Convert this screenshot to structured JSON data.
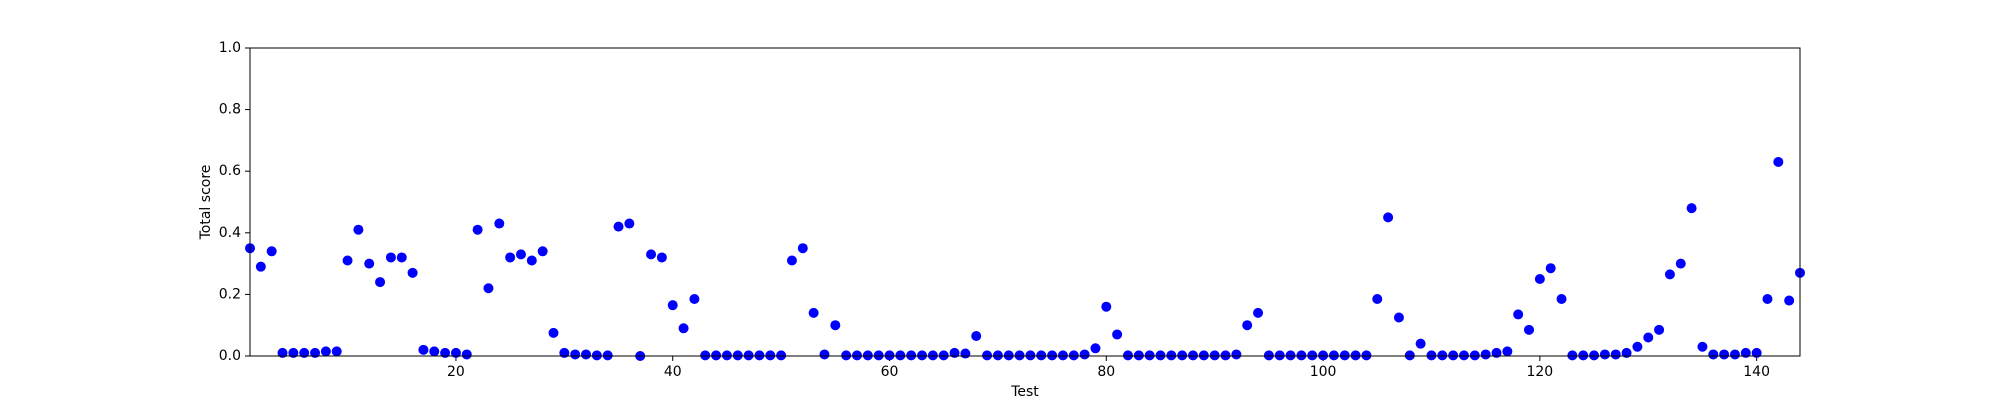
{
  "chart_data": {
    "type": "scatter",
    "x_label": "Test",
    "y_label": "Total score",
    "x": [
      1,
      2,
      3,
      4,
      5,
      6,
      7,
      8,
      9,
      10,
      11,
      12,
      13,
      14,
      15,
      16,
      17,
      18,
      19,
      20,
      21,
      22,
      23,
      24,
      25,
      26,
      27,
      28,
      29,
      30,
      31,
      32,
      33,
      34,
      35,
      36,
      37,
      38,
      39,
      40,
      41,
      42,
      43,
      44,
      45,
      46,
      47,
      48,
      49,
      50,
      51,
      52,
      53,
      54,
      55,
      56,
      57,
      58,
      59,
      60,
      61,
      62,
      63,
      64,
      65,
      66,
      67,
      68,
      69,
      70,
      71,
      72,
      73,
      74,
      75,
      76,
      77,
      78,
      79,
      80,
      81,
      82,
      83,
      84,
      85,
      86,
      87,
      88,
      89,
      90,
      91,
      92,
      93,
      94,
      95,
      96,
      97,
      98,
      99,
      100,
      101,
      102,
      103,
      104,
      105,
      106,
      107,
      108,
      109,
      110,
      111,
      112,
      113,
      114,
      115,
      116,
      117,
      118,
      119,
      120,
      121,
      122,
      123,
      124,
      125,
      126,
      127,
      128,
      129,
      130,
      131,
      132,
      133,
      134,
      135,
      136,
      137,
      138,
      139,
      140,
      141,
      142,
      143,
      144
    ],
    "values": [
      0.35,
      0.29,
      0.34,
      0.01,
      0.01,
      0.01,
      0.01,
      0.015,
      0.015,
      0.31,
      0.41,
      0.3,
      0.24,
      0.32,
      0.32,
      0.27,
      0.02,
      0.015,
      0.01,
      0.01,
      0.005,
      0.41,
      0.22,
      0.43,
      0.32,
      0.33,
      0.31,
      0.34,
      0.075,
      0.01,
      0.005,
      0.005,
      0.002,
      0.002,
      0.42,
      0.43,
      0,
      0.33,
      0.32,
      0.165,
      0.09,
      0.185,
      0.002,
      0.002,
      0.002,
      0.002,
      0.002,
      0.002,
      0.002,
      0.002,
      0.31,
      0.35,
      0.14,
      0.005,
      0.1,
      0.002,
      0.002,
      0.002,
      0.002,
      0.002,
      0.002,
      0.002,
      0.002,
      0.002,
      0.002,
      0.01,
      0.008,
      0.065,
      0.002,
      0.002,
      0.002,
      0.002,
      0.002,
      0.002,
      0.002,
      0.002,
      0.002,
      0.005,
      0.025,
      0.16,
      0.07,
      0.002,
      0.002,
      0.002,
      0.002,
      0.002,
      0.002,
      0.002,
      0.002,
      0.002,
      0.002,
      0.005,
      0.1,
      0.14,
      0.002,
      0.002,
      0.002,
      0.002,
      0.002,
      0.002,
      0.002,
      0.002,
      0.002,
      0.002,
      0.185,
      0.45,
      0.125,
      0.002,
      0.04,
      0.002,
      0.002,
      0.002,
      0.002,
      0.002,
      0.005,
      0.01,
      0.015,
      0.135,
      0.085,
      0.25,
      0.285,
      0.185,
      0.002,
      0.002,
      0.002,
      0.005,
      0.005,
      0.01,
      0.03,
      0.06,
      0.085,
      0.265,
      0.3,
      0.48,
      0.03,
      0.005,
      0.005,
      0.005,
      0.01,
      0.01,
      0.185,
      0.63,
      0.18,
      0.27
    ],
    "color": "#0000ff",
    "xlim": [
      1,
      144
    ],
    "xticks": [
      20,
      40,
      60,
      80,
      100,
      120,
      140
    ],
    "ylim": [
      0,
      1
    ],
    "yticks": [
      {
        "value": 0,
        "label": "0.0"
      },
      0.2,
      0.4,
      0.6,
      0.8,
      {
        "value": 1,
        "label": "1.0"
      }
    ],
    "grid": false
  }
}
